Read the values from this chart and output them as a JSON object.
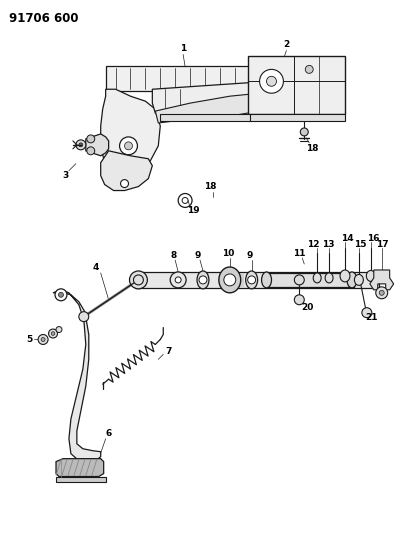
{
  "title": "91706 600",
  "bg": "#ffffff",
  "lc": "#1a1a1a",
  "figsize": [
    4.0,
    5.33
  ],
  "dpi": 100
}
